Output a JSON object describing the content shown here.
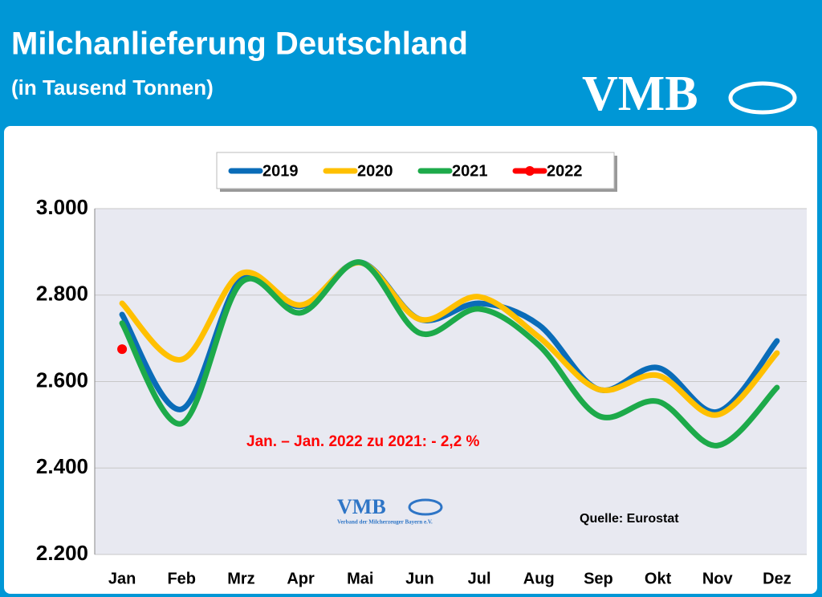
{
  "header": {
    "logo": "VMB"
  },
  "watermark": {
    "logo": "VMB",
    "text": "Verband der Milcherzeuger Bayern e.V."
  },
  "chart_data": {
    "type": "line",
    "title": "Milchanlieferung Deutschland",
    "subtitle": "(in Tausend Tonnen)",
    "categories": [
      "Jan",
      "Feb",
      "Mrz",
      "Apr",
      "Mai",
      "Jun",
      "Jul",
      "Aug",
      "Sep",
      "Okt",
      "Nov",
      "Dez"
    ],
    "series": [
      {
        "name": "2019",
        "color": "#0a6cb8",
        "values": [
          2755,
          2536,
          2837,
          2774,
          2876,
          2744,
          2781,
          2731,
          2582,
          2632,
          2530,
          2694
        ]
      },
      {
        "name": "2020",
        "color": "#ffc000",
        "values": [
          2781,
          2651,
          2850,
          2777,
          2875,
          2744,
          2796,
          2703,
          2582,
          2614,
          2523,
          2666
        ]
      },
      {
        "name": "2021",
        "color": "#1daa4a",
        "values": [
          2735,
          2503,
          2829,
          2759,
          2876,
          2712,
          2768,
          2684,
          2521,
          2554,
          2452,
          2586
        ]
      },
      {
        "name": "2022",
        "color": "#ff0000",
        "values": [
          2675,
          null,
          null,
          null,
          null,
          null,
          null,
          null,
          null,
          null,
          null,
          null
        ]
      }
    ],
    "ylim": [
      2200,
      3000
    ],
    "yticks": [
      {
        "value": 2200,
        "label": "2.200"
      },
      {
        "value": 2400,
        "label": "2.400"
      },
      {
        "value": 2600,
        "label": "2.600"
      },
      {
        "value": 2800,
        "label": "2.800"
      },
      {
        "value": 3000,
        "label": "3.000"
      }
    ],
    "grid": true,
    "legend": "top",
    "annotations": [
      "Jan. – Jan.  2022 zu 2021: - 2,2 %",
      "Quelle: Eurostat"
    ]
  }
}
